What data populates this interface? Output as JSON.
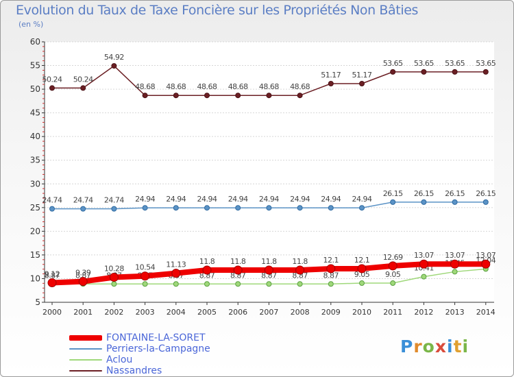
{
  "header": {
    "title": "Evolution du Taux de Taxe Foncière sur les Propriétés Non Bâties",
    "unit": "(en %)"
  },
  "logo": {
    "letters": [
      "P",
      "r",
      "o",
      "x",
      "i",
      "t",
      "i"
    ],
    "colors": [
      "#3a8fd8",
      "#e08a2c",
      "#7ab648",
      "#d94c3c",
      "#3a8fd8",
      "#e0a030",
      "#7ab648"
    ]
  },
  "chart_data": {
    "type": "line",
    "title": "Evolution du Taux de Taxe Foncière sur les Propriétés Non Bâties",
    "ylabel": "(en %)",
    "xlabel": "",
    "categories": [
      "2000",
      "2001",
      "2002",
      "2003",
      "2004",
      "2005",
      "2006",
      "2007",
      "2008",
      "2009",
      "2010",
      "2011",
      "2012",
      "2013",
      "2014"
    ],
    "ylim": [
      5,
      60
    ],
    "yticks": [
      5,
      10,
      15,
      20,
      25,
      30,
      35,
      40,
      45,
      50,
      55,
      60
    ],
    "grid": "horizontal",
    "series": [
      {
        "name": "Nassandres",
        "color": "#6b1f24",
        "values": [
          50.24,
          50.24,
          54.92,
          48.68,
          48.68,
          48.68,
          48.68,
          48.68,
          48.68,
          51.17,
          51.17,
          53.65,
          53.65,
          53.65,
          53.65
        ],
        "labels": [
          "50.24",
          "50.24",
          "54.92",
          "48.68",
          "48.68",
          "48.68",
          "48.68",
          "48.68",
          "48.68",
          "51.17",
          "51.17",
          "53.65",
          "53.65",
          "53.65",
          "53.65"
        ]
      },
      {
        "name": "Perriers-la-Campagne",
        "color": "#5b93c6",
        "values": [
          24.74,
          24.74,
          24.74,
          24.94,
          24.94,
          24.94,
          24.94,
          24.94,
          24.94,
          24.94,
          24.94,
          26.15,
          26.15,
          26.15,
          26.15
        ],
        "labels": [
          "24.74",
          "24.74",
          "24.74",
          "24.94",
          "24.94",
          "24.94",
          "24.94",
          "24.94",
          "24.94",
          "24.94",
          "24.94",
          "26.15",
          "26.15",
          "26.15",
          "26.15"
        ]
      },
      {
        "name": "Aclou",
        "color": "#9fd87a",
        "values": [
          8.87,
          8.87,
          8.87,
          8.87,
          8.87,
          8.87,
          8.87,
          8.87,
          8.87,
          8.87,
          9.05,
          9.05,
          10.41,
          11.45,
          12.04
        ],
        "labels": [
          "8.87",
          "8.87",
          "8.87",
          "8.87",
          "8.87",
          "8.87",
          "8.87",
          "8.87",
          "8.87",
          "8.87",
          "9.05",
          "9.05",
          "10.41",
          "11.45",
          "12.04"
        ]
      },
      {
        "name": "FONTAINE-LA-SORET",
        "color": "#ee0000",
        "values": [
          9.12,
          9.39,
          10.28,
          10.54,
          11.13,
          11.8,
          11.8,
          11.8,
          11.8,
          12.1,
          12.1,
          12.69,
          13.07,
          13.07,
          13.07
        ],
        "labels": [
          "9.12",
          "9.39",
          "10.28",
          "10.54",
          "11.13",
          "11.8",
          "11.8",
          "11.8",
          "11.8",
          "12.1",
          "12.1",
          "12.69",
          "13.07",
          "13.07",
          "13.07"
        ]
      }
    ],
    "legend": [
      "FONTAINE-LA-SORET",
      "Perriers-la-Campagne",
      "Aclou",
      "Nassandres"
    ],
    "legend_position": "bottom-left"
  }
}
